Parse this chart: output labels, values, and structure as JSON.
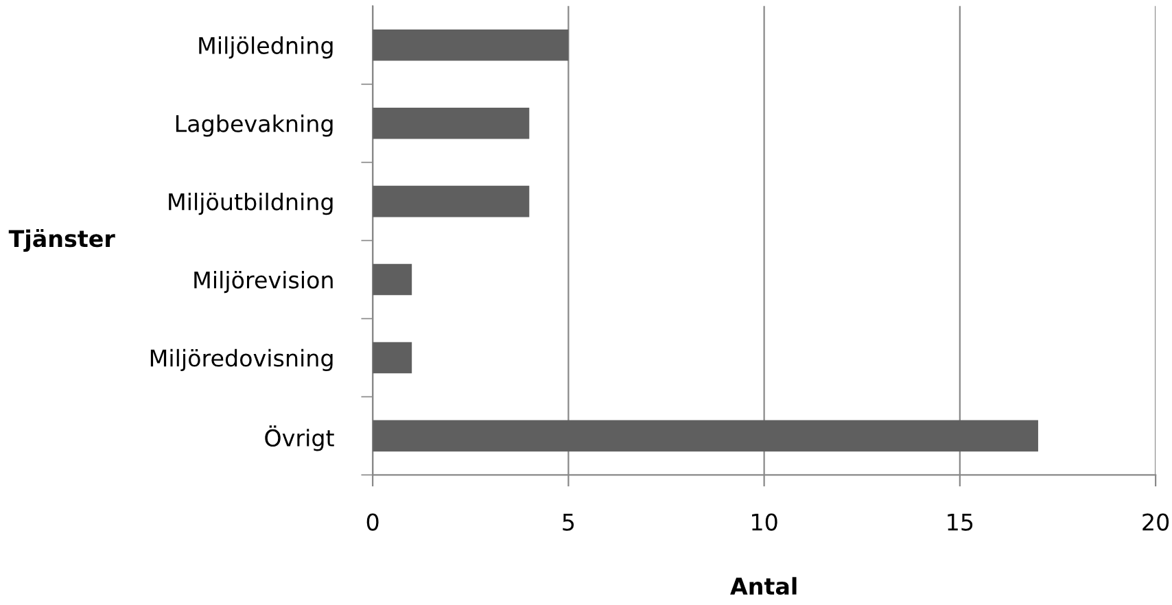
{
  "chart_data": {
    "type": "bar",
    "orientation": "horizontal",
    "xlabel": "Antal",
    "ylabel": "Tjänster",
    "categories": [
      "Miljöledning",
      "Lagbevakning",
      "Miljöutbildning",
      "Miljörevision",
      "Miljöredovisning",
      "Övrigt"
    ],
    "values": [
      5,
      4,
      4,
      1,
      1,
      17
    ],
    "color": "#5f5f5f",
    "xlim": [
      0,
      20
    ],
    "xticks": [
      0,
      5,
      10,
      15,
      20
    ],
    "grid": "x",
    "legend": false
  }
}
